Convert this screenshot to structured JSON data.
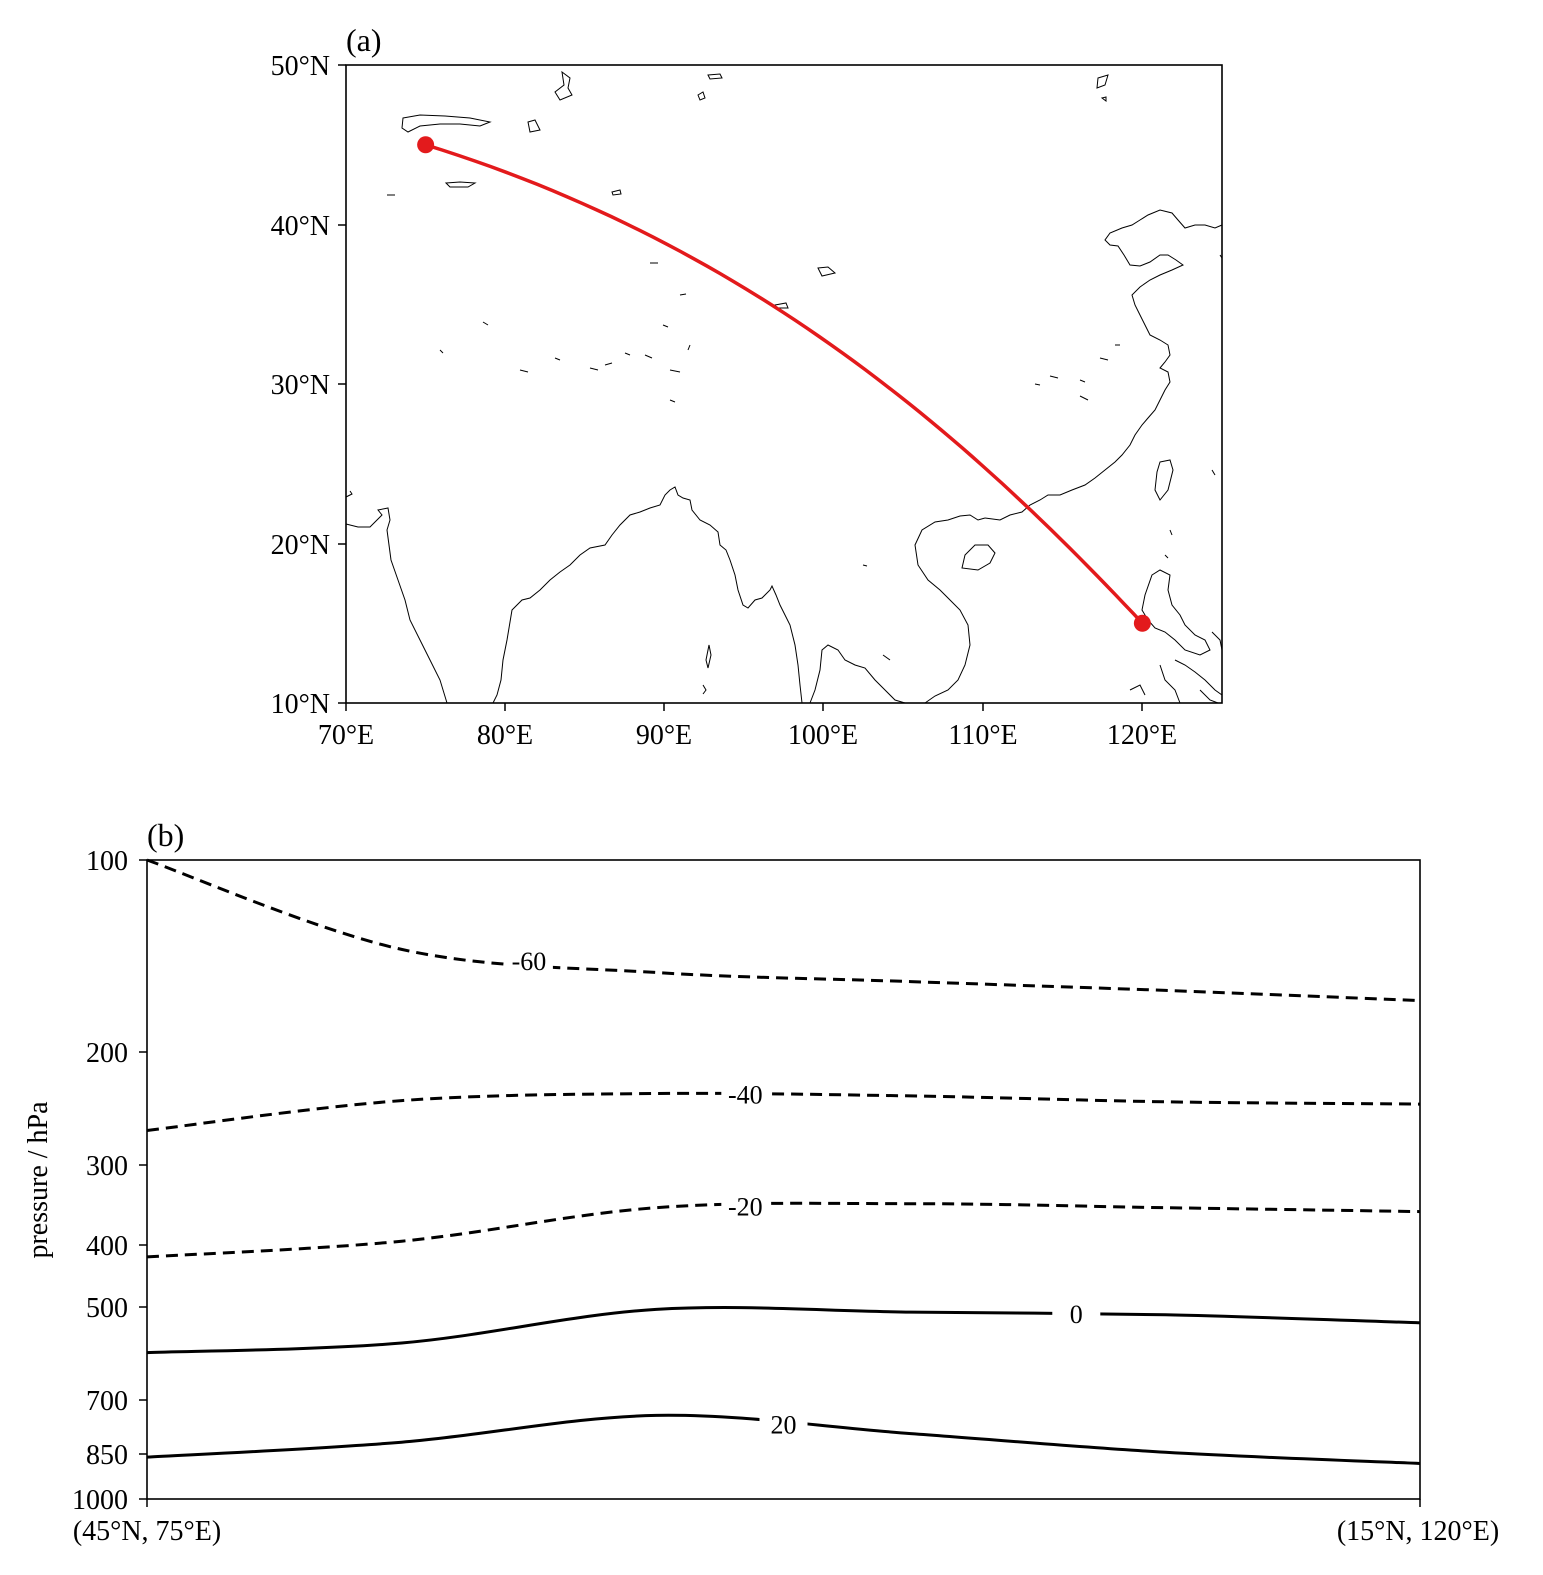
{
  "panel_a": {
    "label": "(a)",
    "x_ticks": [
      "70°E",
      "80°E",
      "90°E",
      "100°E",
      "110°E",
      "120°E"
    ],
    "y_ticks": [
      "10°N",
      "20°N",
      "30°N",
      "40°N",
      "50°N"
    ],
    "lon_range": [
      70,
      125
    ],
    "lat_range": [
      10,
      50
    ],
    "route": {
      "start": {
        "lon": 75,
        "lat": 45
      },
      "end": {
        "lon": 120,
        "lat": 15
      },
      "color": "#e31a1c"
    }
  },
  "panel_b": {
    "label": "(b)",
    "ylabel": "pressure / hPa",
    "y_ticks": [
      "100",
      "200",
      "300",
      "400",
      "500",
      "700",
      "850",
      "1000"
    ],
    "x_ticks": [
      "(45°N, 75°E)",
      "(15°N, 120°E)"
    ]
  },
  "chart_data": {
    "type": "line",
    "xlabel": "",
    "ylabel": "pressure / hPa",
    "x_domain": [
      "(45°N, 75°E)",
      "(15°N, 120°E)"
    ],
    "ylim": [
      1000,
      100
    ],
    "yscale": "log",
    "x": [
      0.0,
      0.2,
      0.4,
      0.6,
      0.8,
      1.0
    ],
    "series": [
      {
        "name": "-60",
        "values": [
          100,
          138,
          150,
          155,
          160,
          166
        ],
        "style": "dashed"
      },
      {
        "name": "-40",
        "values": [
          265,
          238,
          232,
          234,
          239,
          241
        ],
        "style": "dashed"
      },
      {
        "name": "-20",
        "values": [
          418,
          395,
          350,
          345,
          350,
          355
        ],
        "style": "dashed"
      },
      {
        "name": "0",
        "values": [
          590,
          570,
          505,
          510,
          515,
          530
        ],
        "style": "solid"
      },
      {
        "name": "20",
        "values": [
          860,
          815,
          740,
          790,
          845,
          880
        ],
        "style": "solid"
      }
    ]
  }
}
